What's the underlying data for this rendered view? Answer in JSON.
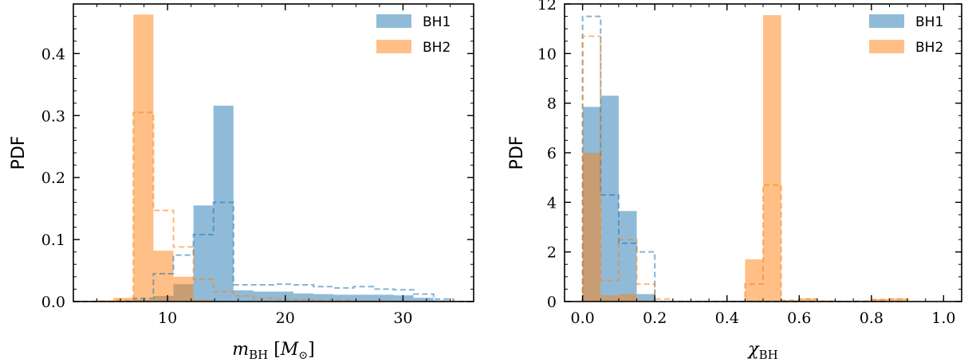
{
  "colors": {
    "BH1": "#1f77b4",
    "BH2": "#ff7f0e"
  },
  "chart_data": [
    {
      "type": "bar",
      "xlabel": "m_BH [M_⊙]",
      "ylabel": "PDF",
      "xlim": [
        2,
        36
      ],
      "ylim": [
        0,
        0.48
      ],
      "xticks": [
        10,
        20,
        30
      ],
      "yticks": [
        0.0,
        0.1,
        0.2,
        0.3,
        0.4
      ],
      "ytick_labels": [
        "0.0",
        "0.1",
        "0.2",
        "0.3",
        "0.4"
      ],
      "xtick_labels": [
        "10",
        "20",
        "30"
      ],
      "legend": {
        "placement": "top-right",
        "entries": [
          "BH1",
          "BH2"
        ]
      },
      "grid": false,
      "bin_edges": [
        2,
        3.7,
        5.4,
        7.1,
        8.8,
        10.5,
        12.2,
        13.9,
        15.6,
        17.3,
        19,
        20.7,
        22.4,
        24.1,
        25.8,
        27.5,
        29.2,
        30.9,
        32.6,
        34.3,
        36
      ],
      "series": [
        {
          "name": "BH1",
          "style": "filled",
          "values": [
            0,
            0,
            0,
            0.003,
            0.009,
            0.028,
            0.155,
            0.316,
            0.018,
            0.016,
            0.016,
            0.013,
            0.012,
            0.011,
            0.011,
            0.011,
            0.01,
            0.006,
            0.002,
            0
          ]
        },
        {
          "name": "BH2",
          "style": "filled",
          "values": [
            0.001,
            0.002,
            0.006,
            0.463,
            0.082,
            0.04,
            0.003,
            0.001,
            0.001,
            0,
            0,
            0,
            0,
            0,
            0,
            0,
            0,
            0,
            0,
            0
          ]
        },
        {
          "style": "dashed",
          "color_of": "BH1",
          "values": [
            0,
            0,
            0,
            0.005,
            0.045,
            0.075,
            0.108,
            0.16,
            0.027,
            0.027,
            0.028,
            0.027,
            0.024,
            0.022,
            0.024,
            0.02,
            0.019,
            0.012,
            0.004,
            0
          ]
        },
        {
          "style": "dashed",
          "color_of": "BH2",
          "values": [
            0,
            0,
            0.002,
            0.305,
            0.147,
            0.088,
            0.036,
            0.016,
            0.009,
            0.005,
            0.004,
            0.003,
            0.002,
            0.002,
            0.001,
            0.001,
            0,
            0,
            0,
            0
          ]
        }
      ]
    },
    {
      "type": "bar",
      "xlabel": "χ_BH",
      "ylabel": "PDF",
      "xlim": [
        -0.05,
        1.05
      ],
      "ylim": [
        0,
        12
      ],
      "xticks": [
        0.0,
        0.2,
        0.4,
        0.6,
        0.8,
        1.0
      ],
      "xtick_labels": [
        "0.0",
        "0.2",
        "0.4",
        "0.6",
        "0.8",
        "1.0"
      ],
      "yticks": [
        0,
        2,
        4,
        6,
        8,
        10,
        12
      ],
      "ytick_labels": [
        "0",
        "2",
        "4",
        "6",
        "8",
        "10",
        "12"
      ],
      "legend": {
        "placement": "top-right",
        "entries": [
          "BH1",
          "BH2"
        ]
      },
      "grid": false,
      "bin_edges": [
        0,
        0.05,
        0.1,
        0.15,
        0.2,
        0.25,
        0.3,
        0.35,
        0.4,
        0.45,
        0.5,
        0.55,
        0.6,
        0.65,
        0.7,
        0.75,
        0.8,
        0.85,
        0.9
      ],
      "series": [
        {
          "name": "BH1",
          "style": "filled",
          "values": [
            7.85,
            8.3,
            3.65,
            0.3,
            0,
            0,
            0,
            0,
            0,
            0,
            0,
            0,
            0,
            0,
            0,
            0,
            0,
            0
          ]
        },
        {
          "name": "BH2",
          "style": "filled",
          "values": [
            6.0,
            0.25,
            0.3,
            0.05,
            0.02,
            0,
            0,
            0,
            0,
            1.7,
            11.55,
            0.05,
            0.12,
            0.03,
            0,
            0.02,
            0.1,
            0.12
          ]
        },
        {
          "style": "dashed",
          "color_of": "BH1",
          "values": [
            11.5,
            4.3,
            2.35,
            2.0,
            0,
            0,
            0,
            0,
            0,
            0,
            0,
            0,
            0,
            0,
            0,
            0,
            0,
            0
          ]
        },
        {
          "style": "dashed",
          "color_of": "BH2",
          "values": [
            10.7,
            0.85,
            2.5,
            0.7,
            0.1,
            0,
            0,
            0,
            0,
            0.7,
            4.7,
            0.05,
            0.1,
            0.02,
            0,
            0.02,
            0.08,
            0.1
          ]
        }
      ]
    }
  ]
}
